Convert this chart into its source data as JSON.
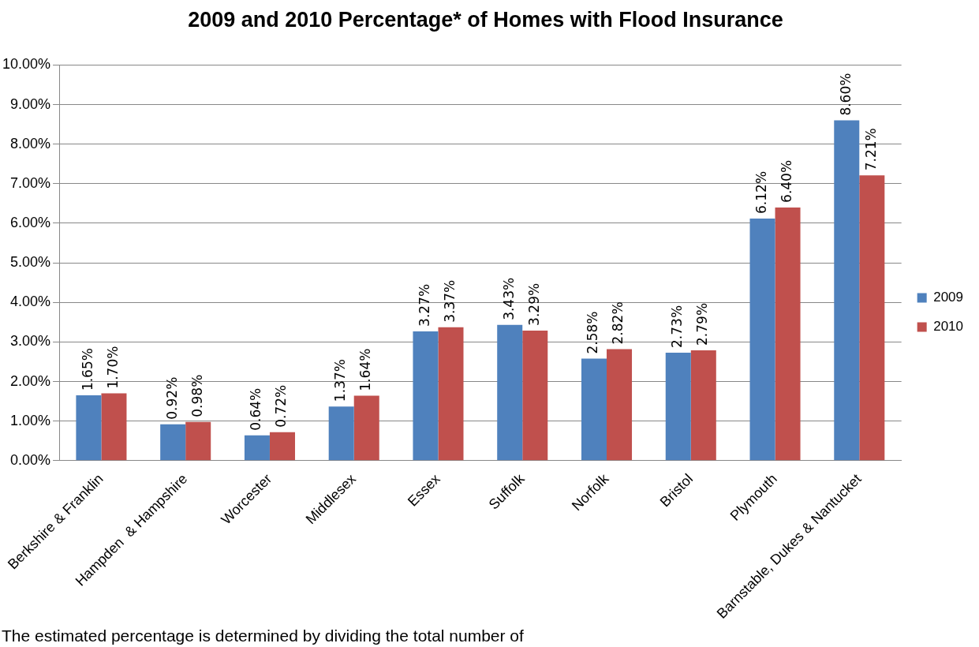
{
  "chart_data": {
    "type": "bar",
    "title": "2009 and 2010 Percentage* of Homes with Flood Insurance",
    "categories": [
      "Berkshire & Franklin",
      "Hampden  & Hampshire",
      "Worcester",
      "Middlesex",
      "Essex",
      "Suffolk",
      "Norfolk",
      "Bristol",
      "Plymouth",
      "Barnstable, Dukes & Nantucket"
    ],
    "series": [
      {
        "name": "2009",
        "color": "#4f81bd",
        "values": [
          1.65,
          0.92,
          0.64,
          1.37,
          3.27,
          3.43,
          2.58,
          2.73,
          6.12,
          8.6
        ],
        "value_labels": [
          "1.65%",
          "0.92%",
          "0.64%",
          "1.37%",
          "3.27%",
          "3.43%",
          "2.58%",
          "2.73%",
          "6.12%",
          "8.60%"
        ]
      },
      {
        "name": "2010",
        "color": "#c0504d",
        "values": [
          1.7,
          0.98,
          0.72,
          1.64,
          3.37,
          3.29,
          2.82,
          2.79,
          6.4,
          7.21
        ],
        "value_labels": [
          "1.70%",
          "0.98%",
          "0.72%",
          "1.64%",
          "3.37%",
          "3.29%",
          "2.82%",
          "2.79%",
          "6.40%",
          "7.21%"
        ]
      }
    ],
    "ylim": [
      0,
      10
    ],
    "yticks": [
      {
        "value": 0,
        "label": "0.00%"
      },
      {
        "value": 1,
        "label": "1.00%"
      },
      {
        "value": 2,
        "label": "2.00%"
      },
      {
        "value": 3,
        "label": "3.00%"
      },
      {
        "value": 4,
        "label": "4.00%"
      },
      {
        "value": 5,
        "label": "5.00%"
      },
      {
        "value": 6,
        "label": "6.00%"
      },
      {
        "value": 7,
        "label": "7.00%"
      },
      {
        "value": 8,
        "label": "8.00%"
      },
      {
        "value": 9,
        "label": "9.00%"
      },
      {
        "value": 10,
        "label": "10.00%"
      }
    ],
    "grid": "y",
    "legend": "right",
    "annotations": [
      "The estimated percentage is determined by dividing the total number of"
    ]
  }
}
